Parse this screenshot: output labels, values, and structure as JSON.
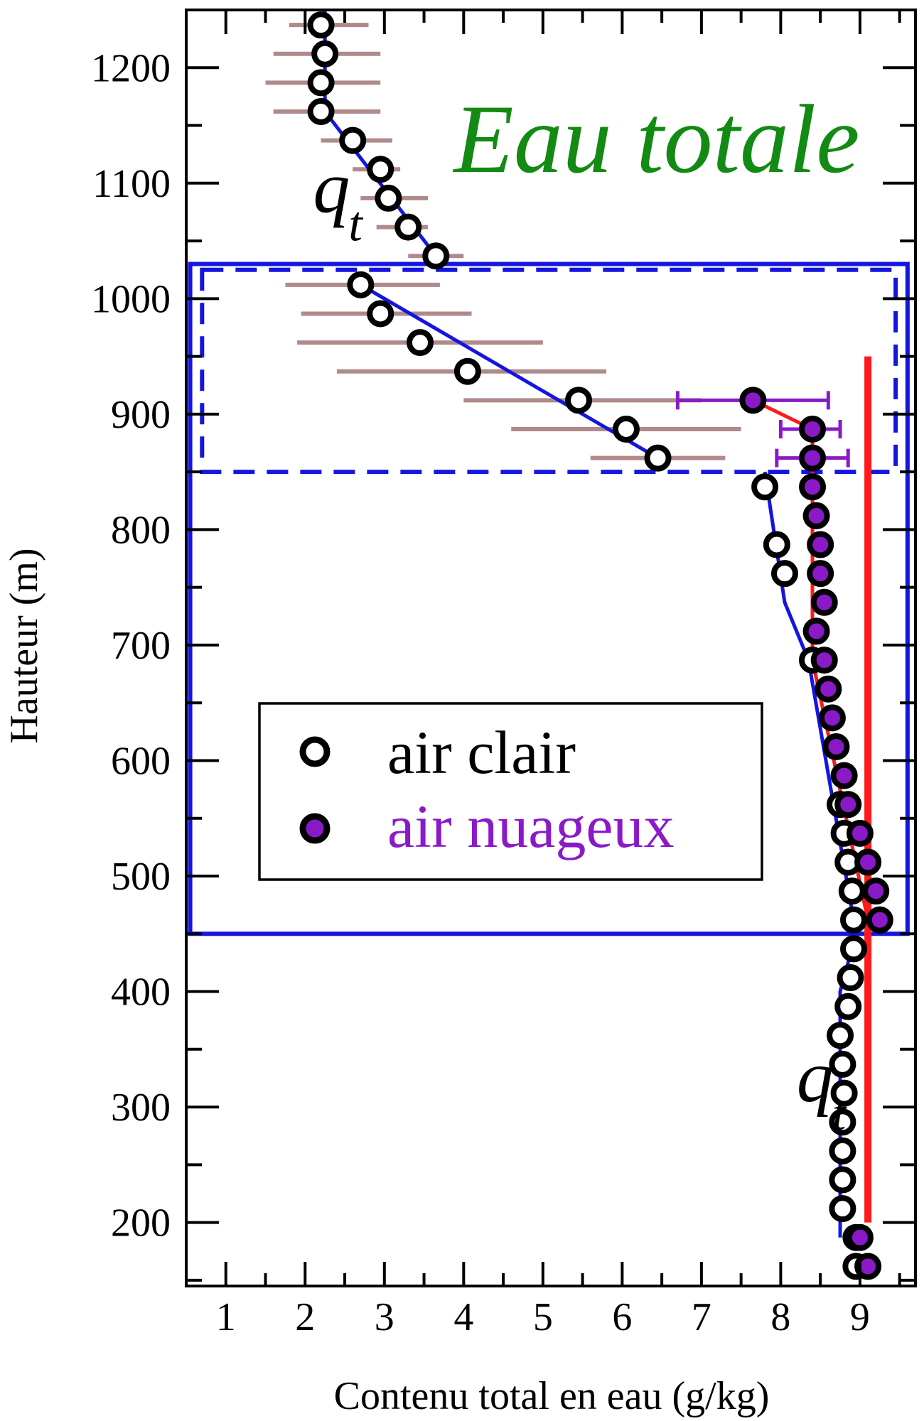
{
  "chart_data": {
    "type": "scatter",
    "title": "Eau totale",
    "xlabel": "Contenu total en eau (g/kg)",
    "ylabel": "Hauteur (m)",
    "xlim": [
      0.5,
      9.7
    ],
    "ylim": [
      145,
      1250
    ],
    "xticks": [
      1,
      2,
      3,
      4,
      5,
      6,
      7,
      8,
      9
    ],
    "yticks": [
      200,
      300,
      400,
      500,
      600,
      700,
      800,
      900,
      1000,
      1100,
      1200
    ],
    "annotations": [
      {
        "text": "q",
        "subscript": "t",
        "x": 2.1,
        "y": 1075
      },
      {
        "text": "q",
        "subscript": "t",
        "x": 8.2,
        "y": 305
      }
    ],
    "legend": {
      "position": "center-left",
      "entries": [
        {
          "label": "air clair",
          "marker": "open-circle",
          "color": "#000000"
        },
        {
          "label": "air nuageux",
          "marker": "filled-circle",
          "color": "#8a1ac8"
        }
      ]
    },
    "series": [
      {
        "name": "air clair",
        "marker": "open-circle",
        "color": "#000000",
        "points": [
          {
            "x": 2.2,
            "y": 1237,
            "xerr": [
              1.8,
              2.8
            ]
          },
          {
            "x": 2.25,
            "y": 1212,
            "xerr": [
              1.6,
              2.95
            ]
          },
          {
            "x": 2.2,
            "y": 1187,
            "xerr": [
              1.5,
              2.95
            ]
          },
          {
            "x": 2.2,
            "y": 1162,
            "xerr": [
              1.6,
              2.95
            ]
          },
          {
            "x": 2.6,
            "y": 1137,
            "xerr": [
              2.2,
              3.1
            ]
          },
          {
            "x": 2.95,
            "y": 1112,
            "xerr": [
              2.6,
              3.2
            ]
          },
          {
            "x": 3.05,
            "y": 1087,
            "xerr": [
              2.7,
              3.55
            ]
          },
          {
            "x": 3.3,
            "y": 1062,
            "xerr": [
              2.9,
              3.55
            ]
          },
          {
            "x": 3.65,
            "y": 1037,
            "xerr": [
              3.3,
              4.0
            ]
          },
          {
            "x": 2.7,
            "y": 1012,
            "xerr": [
              1.75,
              3.7
            ]
          },
          {
            "x": 2.95,
            "y": 987,
            "xerr": [
              1.95,
              4.1
            ]
          },
          {
            "x": 3.45,
            "y": 962,
            "xerr": [
              1.9,
              5.0
            ]
          },
          {
            "x": 4.05,
            "y": 937,
            "xerr": [
              2.4,
              5.8
            ]
          },
          {
            "x": 5.45,
            "y": 912,
            "xerr": [
              4.0,
              7.0
            ]
          },
          {
            "x": 6.05,
            "y": 887,
            "xerr": [
              4.6,
              7.5
            ]
          },
          {
            "x": 6.45,
            "y": 862,
            "xerr": [
              5.6,
              7.3
            ]
          },
          {
            "x": 7.8,
            "y": 837
          },
          {
            "x": 7.95,
            "y": 787
          },
          {
            "x": 8.05,
            "y": 762
          },
          {
            "x": 8.4,
            "y": 687
          },
          {
            "x": 8.75,
            "y": 562
          },
          {
            "x": 8.8,
            "y": 537
          },
          {
            "x": 8.85,
            "y": 512
          },
          {
            "x": 8.9,
            "y": 487
          },
          {
            "x": 8.92,
            "y": 462
          },
          {
            "x": 8.92,
            "y": 437
          },
          {
            "x": 8.88,
            "y": 412
          },
          {
            "x": 8.85,
            "y": 387
          },
          {
            "x": 8.75,
            "y": 362
          },
          {
            "x": 8.78,
            "y": 337
          },
          {
            "x": 8.8,
            "y": 312
          },
          {
            "x": 8.78,
            "y": 287
          },
          {
            "x": 8.78,
            "y": 262
          },
          {
            "x": 8.78,
            "y": 237
          },
          {
            "x": 8.78,
            "y": 212
          },
          {
            "x": 8.95,
            "y": 187
          },
          {
            "x": 8.95,
            "y": 162
          }
        ]
      },
      {
        "name": "air nuageux",
        "marker": "filled-circle",
        "color": "#8a1ac8",
        "points": [
          {
            "x": 7.65,
            "y": 912,
            "xerr": [
              6.7,
              8.6
            ]
          },
          {
            "x": 8.4,
            "y": 887,
            "xerr": [
              8.0,
              8.75
            ]
          },
          {
            "x": 8.4,
            "y": 862,
            "xerr": [
              7.95,
              8.85
            ]
          },
          {
            "x": 8.4,
            "y": 837
          },
          {
            "x": 8.45,
            "y": 812
          },
          {
            "x": 8.5,
            "y": 787
          },
          {
            "x": 8.5,
            "y": 762
          },
          {
            "x": 8.55,
            "y": 737
          },
          {
            "x": 8.45,
            "y": 712
          },
          {
            "x": 8.55,
            "y": 687
          },
          {
            "x": 8.6,
            "y": 662
          },
          {
            "x": 8.65,
            "y": 637
          },
          {
            "x": 8.7,
            "y": 612
          },
          {
            "x": 8.8,
            "y": 587
          },
          {
            "x": 8.85,
            "y": 562
          },
          {
            "x": 9.0,
            "y": 537
          },
          {
            "x": 9.1,
            "y": 512
          },
          {
            "x": 9.2,
            "y": 487
          },
          {
            "x": 9.25,
            "y": 462
          },
          {
            "x": 9.0,
            "y": 187
          },
          {
            "x": 9.1,
            "y": 162
          }
        ]
      }
    ],
    "fit_lines": [
      {
        "color": "#1515e0",
        "width": 5,
        "points": [
          [
            2.25,
            1250
          ],
          [
            2.25,
            1162
          ],
          [
            3.65,
            1037
          ]
        ]
      },
      {
        "color": "#1515e0",
        "width": 5,
        "points": [
          [
            2.7,
            1012
          ],
          [
            6.45,
            862
          ]
        ]
      },
      {
        "color": "#1515e0",
        "width": 5,
        "points": [
          [
            7.8,
            850
          ],
          [
            8.05,
            737
          ],
          [
            8.35,
            687
          ],
          [
            8.95,
            450
          ],
          [
            8.75,
            400
          ],
          [
            8.75,
            187
          ]
        ]
      },
      {
        "color": "#ff1a1a",
        "width": 5,
        "points": [
          [
            7.65,
            912
          ],
          [
            8.4,
            887
          ],
          [
            8.4,
            687
          ],
          [
            9.1,
            462
          ]
        ]
      },
      {
        "color": "#ff1a1a",
        "width": 10,
        "points": [
          [
            9.1,
            950
          ],
          [
            9.1,
            200
          ]
        ]
      }
    ],
    "boxes": [
      {
        "style": "solid",
        "color": "#1515e0",
        "x": [
          0.55,
          9.6
        ],
        "y": [
          450,
          1030
        ]
      },
      {
        "style": "dashed",
        "color": "#1515e0",
        "x": [
          0.7,
          9.45
        ],
        "y": [
          850,
          1025
        ]
      }
    ],
    "grid": false
  }
}
